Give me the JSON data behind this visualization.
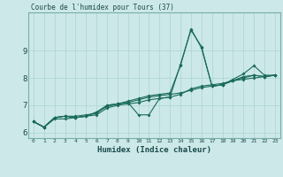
{
  "title": "Courbe de l'humidex pour Tours (37)",
  "xlabel": "Humidex (Indice chaleur)",
  "xlim": [
    -0.5,
    23.5
  ],
  "ylim": [
    5.8,
    10.4
  ],
  "bg_color": "#cce8e8",
  "line_color": "#1a6b5a",
  "grid_color": "#aad4d4",
  "xtick_labels": [
    "0",
    "1",
    "2",
    "3",
    "4",
    "5",
    "6",
    "7",
    "8",
    "9",
    "10",
    "11",
    "12",
    "13",
    "14",
    "15",
    "16",
    "17",
    "18",
    "19",
    "20",
    "21",
    "22",
    "23"
  ],
  "yticks": [
    6,
    7,
    8,
    9
  ],
  "series": [
    [
      6.4,
      6.2,
      6.5,
      6.5,
      6.55,
      6.6,
      6.65,
      6.9,
      7.0,
      7.05,
      7.1,
      7.2,
      7.25,
      7.3,
      7.4,
      7.6,
      7.7,
      7.75,
      7.8,
      7.9,
      7.95,
      8.0,
      8.05,
      8.1
    ],
    [
      6.4,
      6.2,
      6.55,
      6.6,
      6.6,
      6.65,
      6.7,
      7.0,
      7.05,
      7.15,
      7.25,
      7.35,
      7.4,
      7.45,
      8.45,
      9.8,
      9.1,
      7.7,
      7.75,
      7.95,
      8.15,
      8.45,
      8.1,
      8.1
    ],
    [
      6.4,
      6.2,
      6.55,
      6.6,
      6.55,
      6.6,
      6.75,
      7.0,
      7.05,
      7.1,
      6.65,
      6.65,
      7.25,
      7.3,
      8.5,
      9.75,
      9.15,
      7.7,
      7.75,
      7.9,
      8.0,
      8.1,
      8.05,
      8.1
    ],
    [
      6.4,
      6.2,
      6.55,
      6.6,
      6.55,
      6.6,
      6.75,
      6.95,
      7.05,
      7.1,
      7.2,
      7.3,
      7.35,
      7.4,
      7.45,
      7.55,
      7.65,
      7.7,
      7.75,
      7.9,
      8.05,
      8.1,
      8.05,
      8.1
    ]
  ]
}
